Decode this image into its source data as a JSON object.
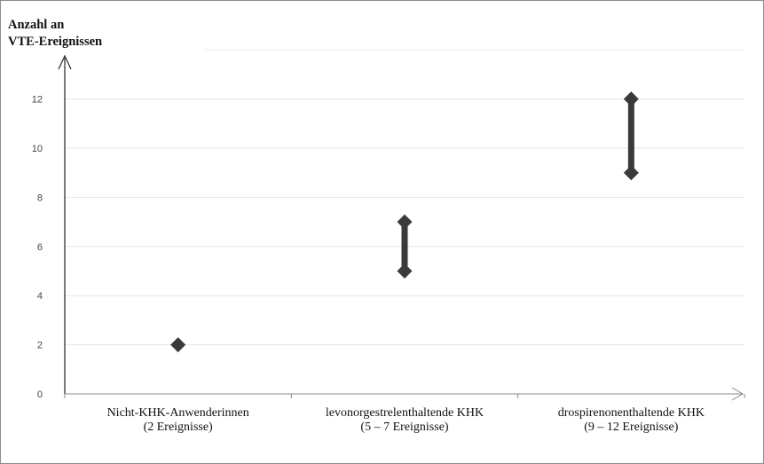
{
  "chart_data": {
    "type": "scatter",
    "ylabel": [
      "Anzahl an",
      "VTE-Ereignissen"
    ],
    "xlabel": "",
    "ylim": [
      0,
      13
    ],
    "yticks": [
      0,
      2,
      4,
      6,
      8,
      10,
      12
    ],
    "grid": true,
    "categories": [
      {
        "name": "Nicht-KHK-Anwenderinnen",
        "sub": "(2 Ereignisse)",
        "low": 2,
        "high": 2
      },
      {
        "name": "levonorgestrelenthaltende KHK",
        "sub": "(5 – 7 Ereignisse)",
        "low": 5,
        "high": 7
      },
      {
        "name": "drospirenonenthaltende KHK",
        "sub": "(9 – 12 Ereignisse)",
        "low": 9,
        "high": 12
      }
    ],
    "marker_color": "#3a3a3a"
  }
}
